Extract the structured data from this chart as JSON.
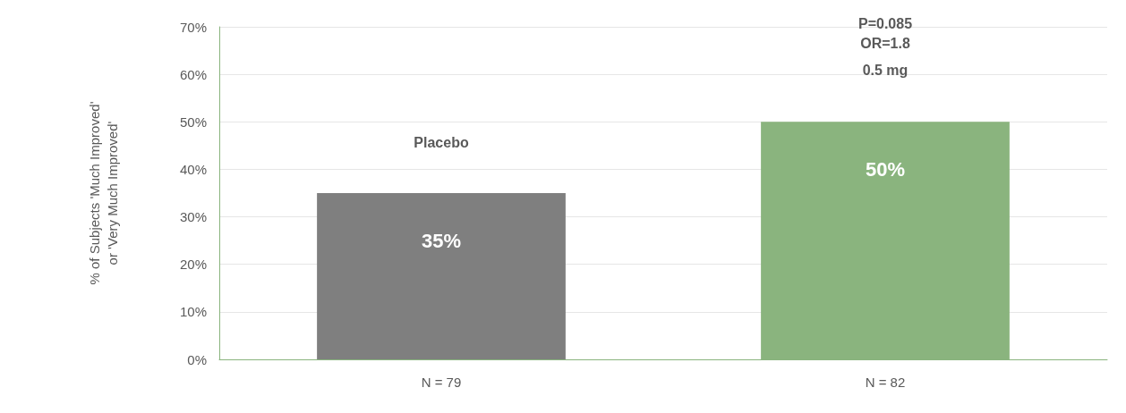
{
  "chart_data": {
    "type": "bar",
    "ylabel": "% of Subjects 'Much Improved' or 'Very Much Improved'",
    "categories": [
      "N = 79",
      "N = 82"
    ],
    "values": [
      35,
      50
    ],
    "colors": [
      "#7f7f7f",
      "#8ab47e"
    ],
    "value_labels": [
      "35%",
      "50%"
    ],
    "ylim": [
      0,
      70
    ],
    "yticks": [
      {
        "value": 0,
        "label": "0%"
      },
      {
        "value": 10,
        "label": "10%"
      },
      {
        "value": 20,
        "label": "20%"
      },
      {
        "value": 30,
        "label": "30%"
      },
      {
        "value": 40,
        "label": "40%"
      },
      {
        "value": 50,
        "label": "50%"
      },
      {
        "value": 60,
        "label": "60%"
      },
      {
        "value": 70,
        "label": "70%"
      }
    ],
    "grid": "y",
    "annotations": [
      "Placebo",
      "0.5 mg",
      "OR=1.8",
      "P=0.085"
    ]
  }
}
